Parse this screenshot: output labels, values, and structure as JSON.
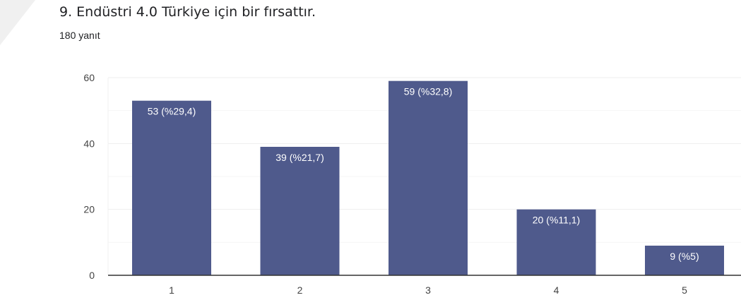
{
  "header": {
    "title": "9. Endüstri 4.0 Türkiye için bir fırsattır.",
    "response_count": "180 yanıt"
  },
  "colors": {
    "bar": "#4f5a8c",
    "gridline": "#eeeeee",
    "axis": "#333333"
  },
  "chart_data": {
    "type": "bar",
    "title": "9. Endüstri 4.0 Türkiye için bir fırsattır.",
    "categories": [
      "1",
      "2",
      "3",
      "4",
      "5"
    ],
    "values": [
      53,
      39,
      59,
      20,
      9
    ],
    "data_labels": [
      "53 (%29,4)",
      "39 (%21,7)",
      "59 (%32,8)",
      "20 (%11,1)",
      "9 (%5)"
    ],
    "y_ticks": [
      0,
      20,
      40,
      60
    ],
    "ylim": [
      0,
      60
    ],
    "grid": true
  }
}
